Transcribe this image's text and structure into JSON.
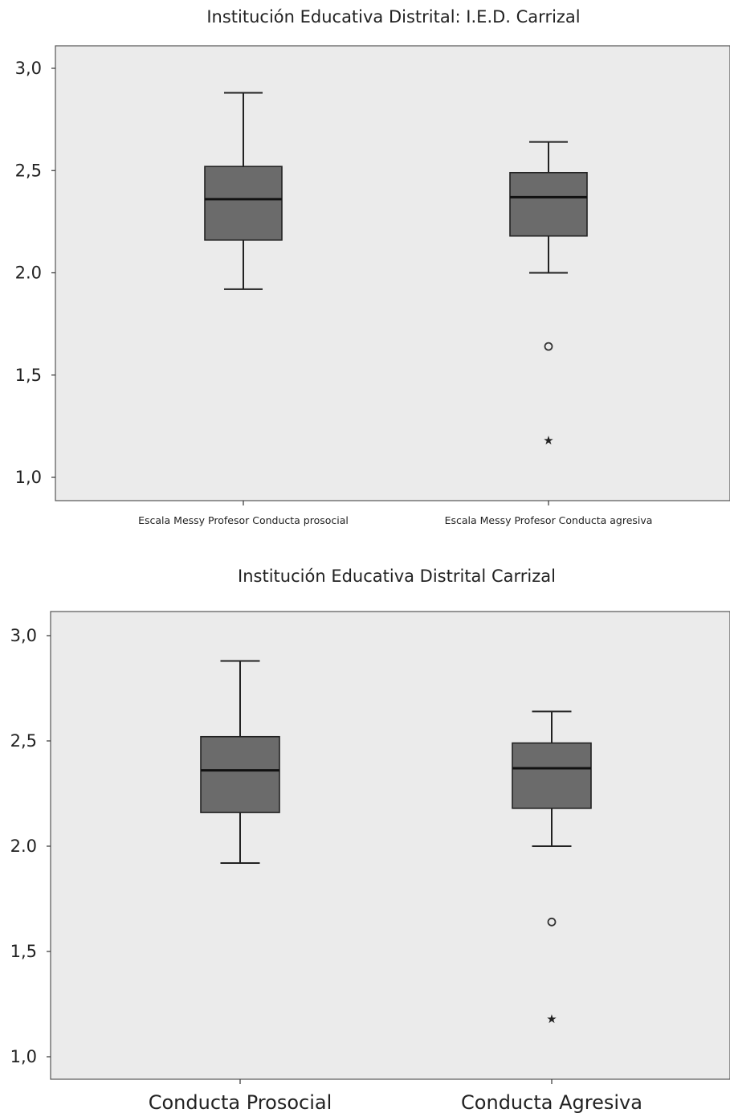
{
  "chart_data": [
    {
      "type": "box",
      "title": "Institución Educativa Distrital: I.E.D. Carrizal",
      "xlabel": "",
      "ylabel": "",
      "ylim": [
        0.95,
        3.05
      ],
      "yticks": [
        "1,0",
        "1,5",
        "2.0",
        "2,5",
        "3,0"
      ],
      "ytick_values": [
        1.0,
        1.5,
        2.0,
        2.5,
        3.0
      ],
      "categories": [
        "Escala Messy Profesor Conducta prosocial",
        "Escala Messy Profesor Conducta agresiva"
      ],
      "boxes": [
        {
          "whisker_low": 1.92,
          "q1": 2.16,
          "median": 2.36,
          "q3": 2.52,
          "whisker_high": 2.88,
          "outliers": [],
          "extremes": []
        },
        {
          "whisker_low": 2.0,
          "q1": 2.18,
          "median": 2.37,
          "q3": 2.49,
          "whisker_high": 2.64,
          "outliers": [
            1.64
          ],
          "extremes": [
            1.18
          ]
        }
      ],
      "colors": {
        "box": "#6b6b6b",
        "plot_bg": "#ebebeb",
        "line": "#222222"
      }
    },
    {
      "type": "box",
      "title": "Institución Educativa Distrital Carrizal",
      "xlabel": "",
      "ylabel": "",
      "ylim": [
        0.95,
        3.05
      ],
      "yticks": [
        "1,0",
        "1,5",
        "2.0",
        "2,5",
        "3,0"
      ],
      "ytick_values": [
        1.0,
        1.5,
        2.0,
        2.5,
        3.0
      ],
      "categories": [
        "Conducta Prosocial",
        "Conducta Agresiva"
      ],
      "boxes": [
        {
          "whisker_low": 1.92,
          "q1": 2.16,
          "median": 2.36,
          "q3": 2.52,
          "whisker_high": 2.88,
          "outliers": [],
          "extremes": []
        },
        {
          "whisker_low": 2.0,
          "q1": 2.18,
          "median": 2.37,
          "q3": 2.49,
          "whisker_high": 2.64,
          "outliers": [
            1.64
          ],
          "extremes": [
            1.18
          ]
        }
      ],
      "colors": {
        "box": "#6b6b6b",
        "plot_bg": "#ebebeb",
        "line": "#222222"
      }
    }
  ]
}
